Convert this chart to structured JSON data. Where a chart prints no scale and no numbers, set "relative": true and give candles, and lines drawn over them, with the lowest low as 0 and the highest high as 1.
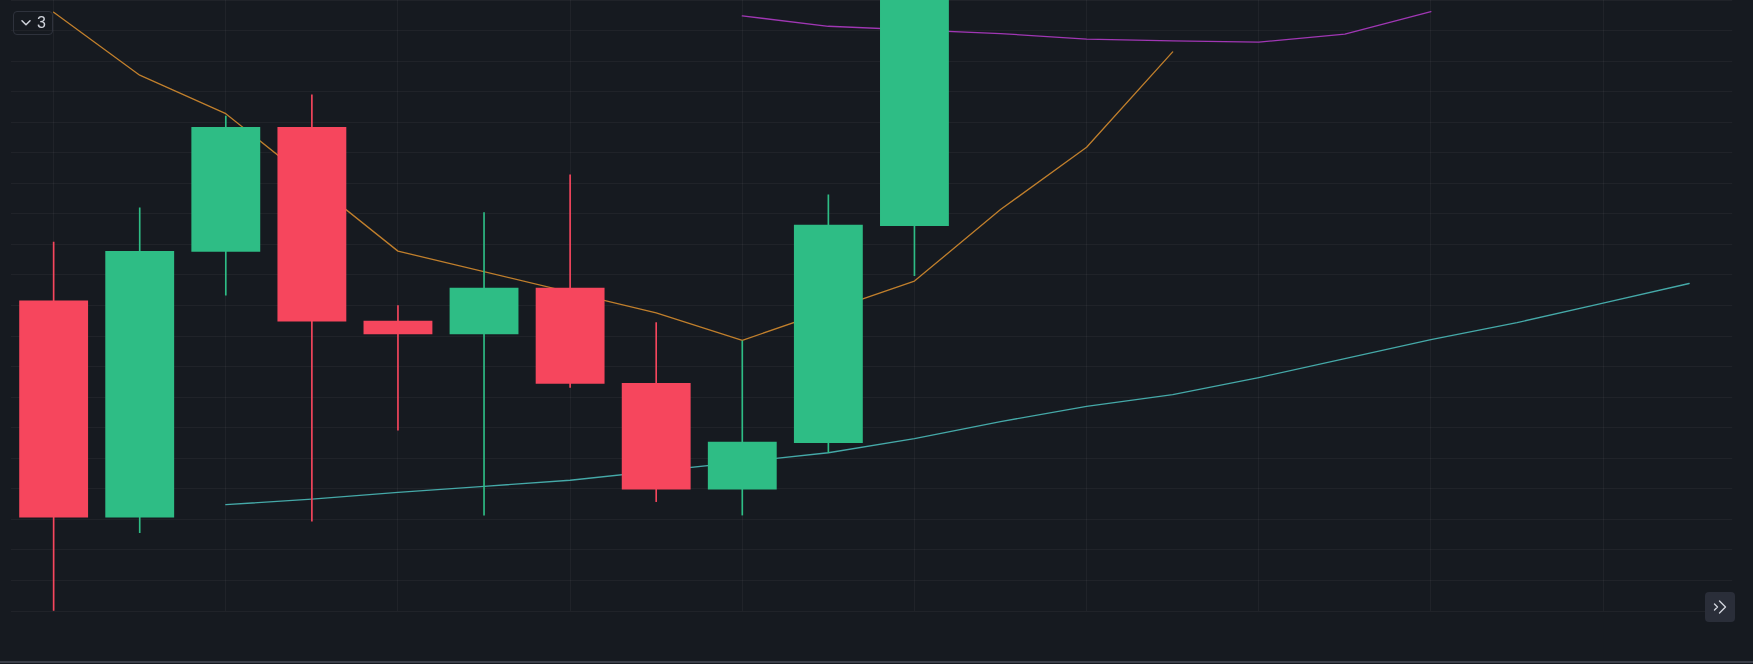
{
  "chart_data": {
    "type": "candlestick",
    "relative": true,
    "grid": true,
    "categories": [
      null,
      null,
      null,
      null,
      null,
      null,
      null,
      null,
      null,
      null,
      null,
      null,
      null,
      null,
      null,
      null,
      null,
      null,
      null,
      null
    ],
    "series": [
      {
        "ohlc": [
          [
            0.508,
            0.604,
            0,
            0.153
          ],
          [
            0.153,
            0.66,
            0.128,
            0.589
          ],
          [
            0.588,
            0.81,
            0.517,
            0.792
          ],
          [
            0.792,
            0.845,
            0.147,
            0.474
          ],
          [
            0.475,
            0.5,
            0.296,
            0.453
          ],
          [
            0.453,
            0.652,
            0.157,
            0.529
          ],
          [
            0.529,
            0.714,
            0.366,
            0.372
          ],
          [
            0.373,
            0.472,
            0.179,
            0.199
          ],
          [
            0.199,
            0.442,
            0.157,
            0.277
          ],
          [
            0.275,
            0.681,
            0.259,
            0.632
          ],
          [
            0.63,
            1,
            0.549,
            1
          ],
          null,
          null,
          null,
          null,
          null,
          null,
          null,
          null,
          null
        ],
        "colors": [
          "#f6465d",
          "#2ebd85",
          "#2ebd85",
          "#f6465d",
          "#f6465d",
          "#2ebd85",
          "#f6465d",
          "#f6465d",
          "#2ebd85",
          "#2ebd85",
          "#2ebd85",
          null,
          null,
          null,
          null,
          null,
          null,
          null,
          null,
          null
        ]
      },
      {
        "type": "line",
        "color": "#c07f2c",
        "values": [
          0.98,
          0.877,
          0.814,
          null,
          0.589,
          null,
          null,
          0.488,
          0.443,
          null,
          0.54,
          0.657,
          0.759,
          0.915,
          null,
          null,
          null,
          null,
          null,
          null
        ]
      },
      {
        "type": "line",
        "color": "#a037b4",
        "values": [
          null,
          null,
          null,
          null,
          null,
          null,
          null,
          null,
          0.974,
          0.957,
          null,
          0.945,
          0.936,
          0.933,
          0.931,
          0.944,
          0.981,
          null,
          null,
          null
        ]
      },
      {
        "type": "line",
        "color": "#45a9a8",
        "values": [
          null,
          null,
          0.174,
          0.183,
          0.194,
          0.204,
          0.214,
          null,
          null,
          0.259,
          0.282,
          0.31,
          0.335,
          0.354,
          0.382,
          0.413,
          0.444,
          0.472,
          0.504,
          0.536
        ]
      }
    ],
    "annotations": [
      "3"
    ]
  }
}
